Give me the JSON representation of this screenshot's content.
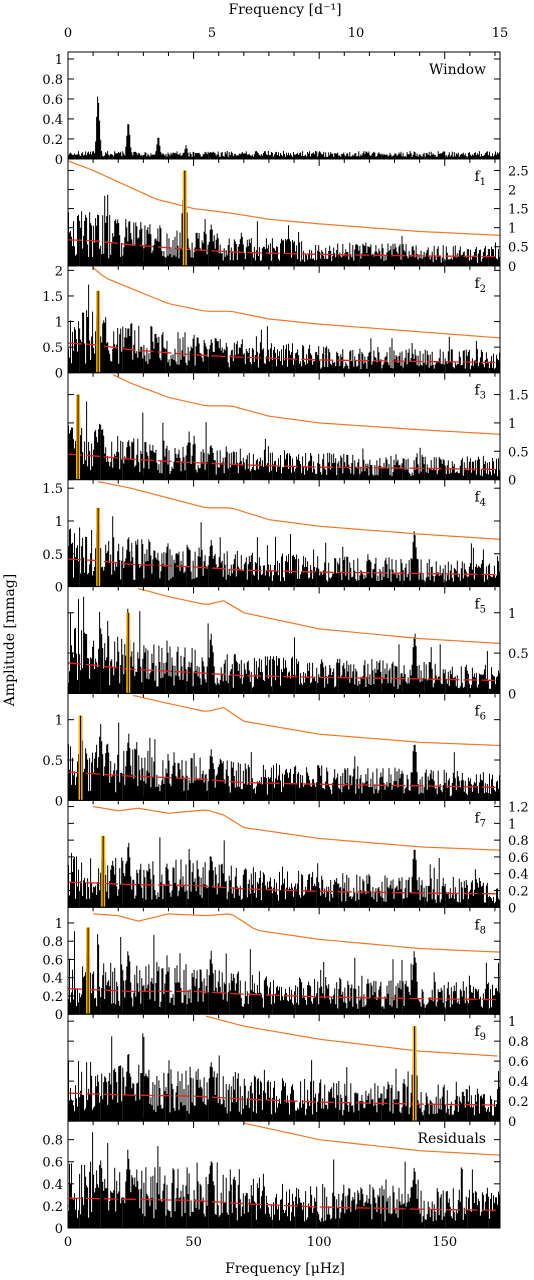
{
  "chart_data": {
    "type": "line",
    "top_axis": {
      "label": "Frequency [d⁻¹]",
      "ticks": [
        "0",
        "5",
        "10",
        "15"
      ],
      "range": [
        0,
        15
      ]
    },
    "bottom_axis": {
      "label": "Frequency [μHz]",
      "ticks": [
        "0",
        "50",
        "100",
        "150"
      ],
      "range": [
        0,
        172
      ]
    },
    "ylabel": "Amplitude [mmag]",
    "colors": {
      "spectrum": "#000000",
      "threshold_upper": "#f07828",
      "noise": "#e8221a",
      "peak_marker": "#f5b800"
    },
    "panels": [
      {
        "label": "Window",
        "sub": "",
        "ylim": [
          0,
          1.05
        ],
        "tick_side": "left",
        "ticks": [
          "0",
          "0.2",
          "0.4",
          "0.6",
          "0.8",
          "1"
        ],
        "peaks": [
          [
            12,
            0.68
          ],
          [
            24,
            0.42
          ],
          [
            36,
            0.23
          ],
          [
            47,
            0.14
          ]
        ],
        "noise": [],
        "upper": [],
        "marker": null
      },
      {
        "label": "f",
        "sub": "1",
        "ylim": [
          0,
          2.75
        ],
        "tick_side": "right",
        "ticks": [
          "0",
          "0.5",
          "1",
          "1.5",
          "2",
          "2.5"
        ],
        "peaks": [
          [
            46.5,
            2.5
          ],
          [
            57,
            1.1
          ],
          [
            69,
            0.9
          ],
          [
            35,
            0.8
          ],
          [
            23,
            0.85
          ]
        ],
        "noise": [
          [
            0,
            0.68
          ],
          [
            10,
            0.66
          ],
          [
            25,
            0.55
          ],
          [
            50,
            0.42
          ],
          [
            70,
            0.35
          ],
          [
            100,
            0.3
          ],
          [
            140,
            0.26
          ],
          [
            172,
            0.24
          ]
        ],
        "upper": [
          [
            0,
            2.75
          ],
          [
            10,
            2.5
          ],
          [
            25,
            2.05
          ],
          [
            35,
            1.75
          ],
          [
            50,
            1.5
          ],
          [
            65,
            1.38
          ],
          [
            80,
            1.22
          ],
          [
            100,
            1.1
          ],
          [
            140,
            0.9
          ],
          [
            172,
            0.8
          ]
        ],
        "marker": 46.5
      },
      {
        "label": "f",
        "sub": "2",
        "ylim": [
          0,
          2.05
        ],
        "tick_side": "left",
        "ticks": [
          "0",
          "0.5",
          "1",
          "1.5",
          "2"
        ],
        "peaks": [
          [
            12,
            1.6
          ],
          [
            24,
            0.95
          ],
          [
            35,
            0.85
          ],
          [
            57,
            0.7
          ],
          [
            69,
            0.6
          ]
        ],
        "noise": [
          [
            0,
            0.58
          ],
          [
            10,
            0.55
          ],
          [
            25,
            0.45
          ],
          [
            50,
            0.35
          ],
          [
            70,
            0.3
          ],
          [
            100,
            0.25
          ],
          [
            140,
            0.22
          ],
          [
            172,
            0.2
          ]
        ],
        "upper": [
          [
            10,
            2.05
          ],
          [
            15,
            1.85
          ],
          [
            25,
            1.65
          ],
          [
            40,
            1.35
          ],
          [
            55,
            1.2
          ],
          [
            65,
            1.2
          ],
          [
            80,
            1.05
          ],
          [
            100,
            0.95
          ],
          [
            140,
            0.8
          ],
          [
            172,
            0.68
          ]
        ],
        "marker": 12
      },
      {
        "label": "f",
        "sub": "3",
        "ylim": [
          0,
          1.85
        ],
        "tick_side": "right",
        "ticks": [
          "0",
          "0.5",
          "1",
          "1.5"
        ],
        "peaks": [
          [
            4,
            1.5
          ],
          [
            13,
            1.1
          ],
          [
            24,
            0.8
          ],
          [
            57,
            0.7
          ]
        ],
        "noise": [
          [
            0,
            0.45
          ],
          [
            10,
            0.42
          ],
          [
            25,
            0.36
          ],
          [
            50,
            0.3
          ],
          [
            70,
            0.26
          ],
          [
            100,
            0.22
          ],
          [
            140,
            0.2
          ],
          [
            172,
            0.18
          ]
        ],
        "upper": [
          [
            18,
            1.85
          ],
          [
            25,
            1.7
          ],
          [
            40,
            1.45
          ],
          [
            55,
            1.3
          ],
          [
            65,
            1.3
          ],
          [
            80,
            1.12
          ],
          [
            100,
            1.0
          ],
          [
            140,
            0.88
          ],
          [
            172,
            0.8
          ]
        ],
        "marker": 4
      },
      {
        "label": "f",
        "sub": "4",
        "ylim": [
          0,
          1.6
        ],
        "tick_side": "left",
        "ticks": [
          "0",
          "0.5",
          "1",
          "1.5"
        ],
        "peaks": [
          [
            12,
            1.2
          ],
          [
            24,
            0.8
          ],
          [
            57,
            0.75
          ],
          [
            138,
            0.9
          ]
        ],
        "noise": [
          [
            0,
            0.42
          ],
          [
            10,
            0.4
          ],
          [
            25,
            0.34
          ],
          [
            50,
            0.3
          ],
          [
            70,
            0.25
          ],
          [
            100,
            0.22
          ],
          [
            140,
            0.2
          ],
          [
            172,
            0.18
          ]
        ],
        "upper": [
          [
            12,
            1.6
          ],
          [
            25,
            1.5
          ],
          [
            40,
            1.35
          ],
          [
            55,
            1.2
          ],
          [
            65,
            1.2
          ],
          [
            80,
            1.02
          ],
          [
            100,
            0.92
          ],
          [
            140,
            0.8
          ],
          [
            172,
            0.72
          ]
        ],
        "marker": 12
      },
      {
        "label": "f",
        "sub": "5",
        "ylim": [
          0,
          1.3
        ],
        "tick_side": "right",
        "ticks": [
          "0",
          "0.5",
          "1"
        ],
        "peaks": [
          [
            24,
            1.0
          ],
          [
            13,
            0.9
          ],
          [
            57,
            0.75
          ],
          [
            138,
            0.8
          ]
        ],
        "noise": [
          [
            0,
            0.38
          ],
          [
            10,
            0.35
          ],
          [
            25,
            0.3
          ],
          [
            50,
            0.26
          ],
          [
            70,
            0.22
          ],
          [
            100,
            0.2
          ],
          [
            140,
            0.18
          ],
          [
            172,
            0.16
          ]
        ],
        "upper": [
          [
            28,
            1.3
          ],
          [
            40,
            1.2
          ],
          [
            55,
            1.1
          ],
          [
            62,
            1.15
          ],
          [
            70,
            1.0
          ],
          [
            100,
            0.8
          ],
          [
            140,
            0.68
          ],
          [
            172,
            0.62
          ]
        ],
        "marker": 24
      },
      {
        "label": "f",
        "sub": "6",
        "ylim": [
          0,
          1.3
        ],
        "tick_side": "left",
        "ticks": [
          "0",
          "0.5",
          "1"
        ],
        "peaks": [
          [
            5,
            1.05
          ],
          [
            13,
            0.95
          ],
          [
            24,
            0.85
          ],
          [
            57,
            0.7
          ],
          [
            138,
            0.8
          ]
        ],
        "noise": [
          [
            0,
            0.35
          ],
          [
            10,
            0.33
          ],
          [
            25,
            0.3
          ],
          [
            50,
            0.27
          ],
          [
            70,
            0.22
          ],
          [
            100,
            0.2
          ],
          [
            140,
            0.18
          ],
          [
            172,
            0.16
          ]
        ],
        "upper": [
          [
            26,
            1.3
          ],
          [
            40,
            1.2
          ],
          [
            55,
            1.1
          ],
          [
            62,
            1.15
          ],
          [
            70,
            0.98
          ],
          [
            100,
            0.82
          ],
          [
            140,
            0.72
          ],
          [
            172,
            0.68
          ]
        ],
        "marker": 5
      },
      {
        "label": "f",
        "sub": "7",
        "ylim": [
          0,
          1.25
        ],
        "tick_side": "right",
        "ticks": [
          "0",
          "0.2",
          "0.4",
          "0.6",
          "0.8",
          "1",
          "1.2"
        ],
        "peaks": [
          [
            14,
            0.85
          ],
          [
            24,
            0.8
          ],
          [
            57,
            0.7
          ],
          [
            138,
            0.75
          ]
        ],
        "noise": [
          [
            0,
            0.3
          ],
          [
            10,
            0.29
          ],
          [
            25,
            0.27
          ],
          [
            50,
            0.26
          ],
          [
            70,
            0.22
          ],
          [
            100,
            0.19
          ],
          [
            140,
            0.17
          ],
          [
            172,
            0.16
          ]
        ],
        "upper": [
          [
            10,
            1.2
          ],
          [
            20,
            1.15
          ],
          [
            28,
            1.18
          ],
          [
            40,
            1.12
          ],
          [
            55,
            1.16
          ],
          [
            62,
            1.1
          ],
          [
            70,
            0.95
          ],
          [
            100,
            0.82
          ],
          [
            140,
            0.72
          ],
          [
            172,
            0.68
          ]
        ],
        "marker": 14
      },
      {
        "label": "f",
        "sub": "8",
        "ylim": [
          0,
          1.15
        ],
        "tick_side": "left",
        "ticks": [
          "0",
          "0.2",
          "0.4",
          "0.6",
          "0.8",
          "1"
        ],
        "peaks": [
          [
            8,
            0.95
          ],
          [
            24,
            0.75
          ],
          [
            57,
            0.7
          ],
          [
            138,
            0.75
          ]
        ],
        "noise": [
          [
            0,
            0.28
          ],
          [
            10,
            0.27
          ],
          [
            25,
            0.25
          ],
          [
            50,
            0.25
          ],
          [
            70,
            0.22
          ],
          [
            100,
            0.19
          ],
          [
            140,
            0.17
          ],
          [
            172,
            0.16
          ]
        ],
        "upper": [
          [
            10,
            1.1
          ],
          [
            20,
            1.08
          ],
          [
            28,
            1.02
          ],
          [
            40,
            1.1
          ],
          [
            55,
            1.08
          ],
          [
            65,
            1.1
          ],
          [
            75,
            0.92
          ],
          [
            100,
            0.82
          ],
          [
            140,
            0.72
          ],
          [
            172,
            0.68
          ]
        ],
        "marker": 8
      },
      {
        "label": "f",
        "sub": "9",
        "ylim": [
          0,
          1.05
        ],
        "tick_side": "right",
        "ticks": [
          "0",
          "0.2",
          "0.4",
          "0.6",
          "0.8",
          "1"
        ],
        "peaks": [
          [
            138,
            0.95
          ],
          [
            24,
            0.7
          ],
          [
            57,
            0.68
          ]
        ],
        "noise": [
          [
            0,
            0.28
          ],
          [
            25,
            0.26
          ],
          [
            50,
            0.25
          ],
          [
            70,
            0.22
          ],
          [
            100,
            0.19
          ],
          [
            140,
            0.17
          ],
          [
            172,
            0.16
          ]
        ],
        "upper": [
          [
            55,
            1.05
          ],
          [
            70,
            0.95
          ],
          [
            100,
            0.82
          ],
          [
            140,
            0.7
          ],
          [
            172,
            0.65
          ]
        ],
        "marker": 138
      },
      {
        "label": "Residuals",
        "sub": "",
        "ylim": [
          0,
          0.95
        ],
        "tick_side": "left",
        "ticks": [
          "0",
          "0.2",
          "0.4",
          "0.6",
          "0.8"
        ],
        "peaks": [
          [
            24,
            0.75
          ],
          [
            57,
            0.7
          ],
          [
            13,
            0.65
          ],
          [
            138,
            0.6
          ]
        ],
        "noise": [
          [
            0,
            0.27
          ],
          [
            25,
            0.26
          ],
          [
            50,
            0.25
          ],
          [
            70,
            0.22
          ],
          [
            100,
            0.19
          ],
          [
            140,
            0.17
          ],
          [
            172,
            0.16
          ]
        ],
        "upper": [
          [
            70,
            0.95
          ],
          [
            100,
            0.8
          ],
          [
            140,
            0.7
          ],
          [
            172,
            0.66
          ]
        ],
        "marker": null
      }
    ]
  }
}
